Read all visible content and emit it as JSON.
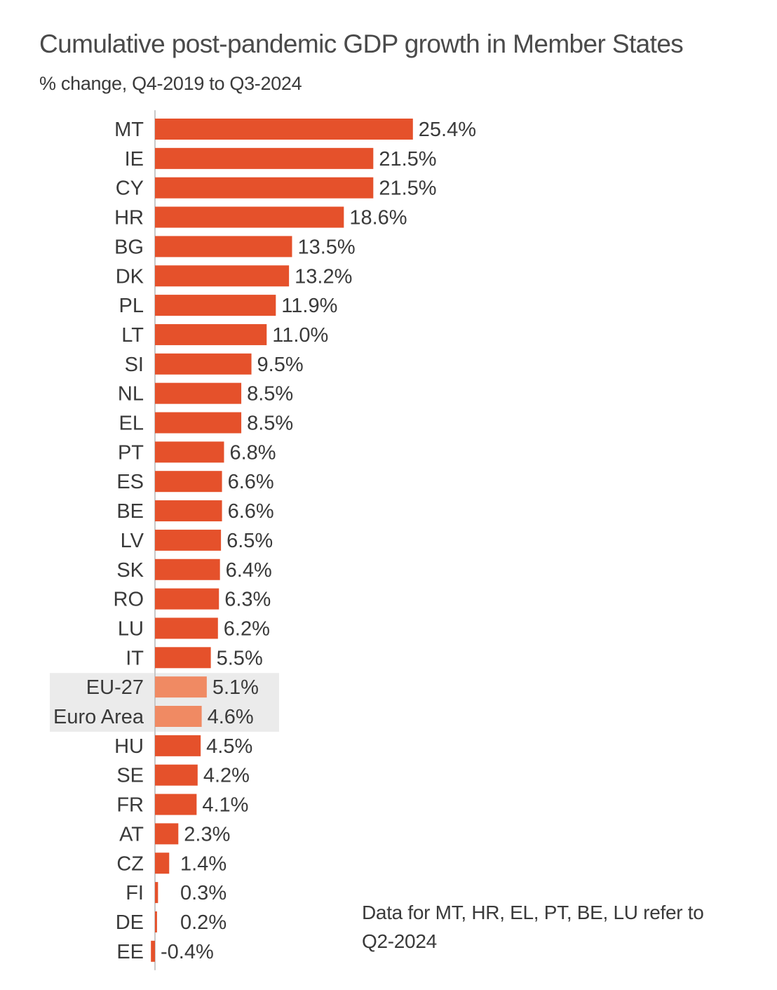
{
  "chart_data": {
    "type": "bar",
    "orientation": "horizontal",
    "title": "Cumulative post-pandemic GDP growth in Member States",
    "subtitle": "% change, Q4-2019 to Q3-2024",
    "note": "Data for MT, HR, EL, PT, BE, LU refer to Q2-2024",
    "categories": [
      "MT",
      "IE",
      "CY",
      "HR",
      "BG",
      "DK",
      "PL",
      "LT",
      "SI",
      "NL",
      "EL",
      "PT",
      "ES",
      "BE",
      "LV",
      "SK",
      "RO",
      "LU",
      "IT",
      "EU-27",
      "Euro Area",
      "HU",
      "SE",
      "FR",
      "AT",
      "CZ",
      "FI",
      "DE",
      "EE"
    ],
    "values": [
      25.4,
      21.5,
      21.5,
      18.6,
      13.5,
      13.2,
      11.9,
      11.0,
      9.5,
      8.5,
      8.5,
      6.8,
      6.6,
      6.6,
      6.5,
      6.4,
      6.3,
      6.2,
      5.5,
      5.1,
      4.6,
      4.5,
      4.2,
      4.1,
      2.3,
      1.4,
      0.3,
      0.2,
      -0.4
    ],
    "value_labels": [
      "25.4%",
      "21.5%",
      "21.5%",
      "18.6%",
      "13.5%",
      "13.2%",
      "11.9%",
      "11.0%",
      "9.5%",
      "8.5%",
      "8.5%",
      "6.8%",
      "6.6%",
      "6.6%",
      "6.5%",
      "6.4%",
      "6.3%",
      "6.2%",
      "5.5%",
      "5.1%",
      "4.6%",
      "4.5%",
      "4.2%",
      "4.1%",
      "2.3%",
      "1.4%",
      "0.3%",
      "0.2%",
      "-0.4%"
    ],
    "highlighted": [
      "EU-27",
      "Euro Area"
    ],
    "colors": {
      "bar": "#e5512b",
      "bar_highlight": "#f08a63",
      "highlight_background": "#ebebeb",
      "axis": "#c8c8c8"
    },
    "grid": false,
    "legend": "none"
  }
}
